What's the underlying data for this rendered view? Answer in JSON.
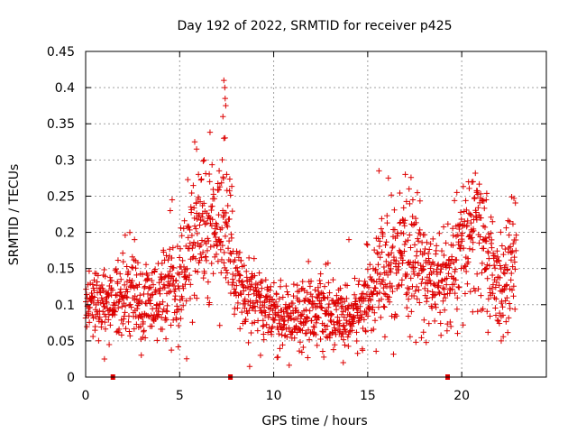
{
  "chart_data": {
    "type": "scatter",
    "title": "Day 192 of 2022, SRMTID for receiver p425",
    "xlabel": "GPS time / hours",
    "ylabel": "SRMTID / TECUs",
    "xlim": [
      0,
      24.5
    ],
    "ylim": [
      0,
      0.45
    ],
    "xticks": [
      0,
      5,
      10,
      15,
      20
    ],
    "xtick_labels": [
      "0",
      "5",
      "10",
      "15",
      "20"
    ],
    "yticks": [
      0,
      0.05,
      0.1,
      0.15,
      0.2,
      0.25,
      0.3,
      0.35,
      0.4,
      0.45
    ],
    "ytick_labels": [
      "0",
      "0.05",
      "0.1",
      "0.15",
      "0.2",
      "0.25",
      "0.3",
      "0.35",
      "0.4",
      "0.45"
    ],
    "grid": true,
    "marker": "plus",
    "series": [
      {
        "name": "SRMTID",
        "color": "#dd0000",
        "trend": [
          [
            0.0,
            0.1
          ],
          [
            0.5,
            0.1
          ],
          [
            1.0,
            0.095
          ],
          [
            1.5,
            0.1
          ],
          [
            2.0,
            0.11
          ],
          [
            2.5,
            0.12
          ],
          [
            3.0,
            0.1
          ],
          [
            3.5,
            0.105
          ],
          [
            4.0,
            0.11
          ],
          [
            4.5,
            0.13
          ],
          [
            5.0,
            0.12
          ],
          [
            5.5,
            0.17
          ],
          [
            6.0,
            0.2
          ],
          [
            6.5,
            0.2
          ],
          [
            7.0,
            0.19
          ],
          [
            7.3,
            0.22
          ],
          [
            7.7,
            0.18
          ],
          [
            8.0,
            0.12
          ],
          [
            8.5,
            0.1
          ],
          [
            9.0,
            0.11
          ],
          [
            9.5,
            0.1
          ],
          [
            10.0,
            0.085
          ],
          [
            10.5,
            0.08
          ],
          [
            11.0,
            0.085
          ],
          [
            11.5,
            0.09
          ],
          [
            12.0,
            0.095
          ],
          [
            12.5,
            0.09
          ],
          [
            13.0,
            0.085
          ],
          [
            13.5,
            0.08
          ],
          [
            14.0,
            0.08
          ],
          [
            14.5,
            0.09
          ],
          [
            15.0,
            0.11
          ],
          [
            15.5,
            0.14
          ],
          [
            16.0,
            0.14
          ],
          [
            16.5,
            0.15
          ],
          [
            17.0,
            0.16
          ],
          [
            17.5,
            0.16
          ],
          [
            18.0,
            0.15
          ],
          [
            18.5,
            0.13
          ],
          [
            19.0,
            0.13
          ],
          [
            19.5,
            0.15
          ],
          [
            20.0,
            0.17
          ],
          [
            20.5,
            0.2
          ],
          [
            21.0,
            0.19
          ],
          [
            21.5,
            0.16
          ],
          [
            22.0,
            0.12
          ],
          [
            22.5,
            0.14
          ],
          [
            22.9,
            0.17
          ]
        ],
        "highlights": [
          [
            5.8,
            0.325
          ],
          [
            5.9,
            0.315
          ],
          [
            6.3,
            0.3
          ],
          [
            6.0,
            0.28
          ],
          [
            6.6,
            0.27
          ],
          [
            7.1,
            0.285
          ],
          [
            7.35,
            0.41
          ],
          [
            7.4,
            0.4
          ],
          [
            7.42,
            0.385
          ],
          [
            7.45,
            0.375
          ],
          [
            7.3,
            0.36
          ],
          [
            7.35,
            0.33
          ],
          [
            7.5,
            0.28
          ],
          [
            4.6,
            0.245
          ],
          [
            4.5,
            0.23
          ],
          [
            15.6,
            0.285
          ],
          [
            16.1,
            0.275
          ],
          [
            17.0,
            0.28
          ],
          [
            17.2,
            0.26
          ],
          [
            17.4,
            0.245
          ],
          [
            20.6,
            0.27
          ],
          [
            20.8,
            0.255
          ],
          [
            21.3,
            0.245
          ],
          [
            14.0,
            0.19
          ],
          [
            2.6,
            0.19
          ],
          [
            1.0,
            0.025
          ],
          [
            9.3,
            0.03
          ],
          [
            13.7,
            0.02
          ],
          [
            22.1,
            0.05
          ]
        ]
      }
    ],
    "gap_markers_x": [
      1.45,
      7.7,
      19.25
    ]
  }
}
